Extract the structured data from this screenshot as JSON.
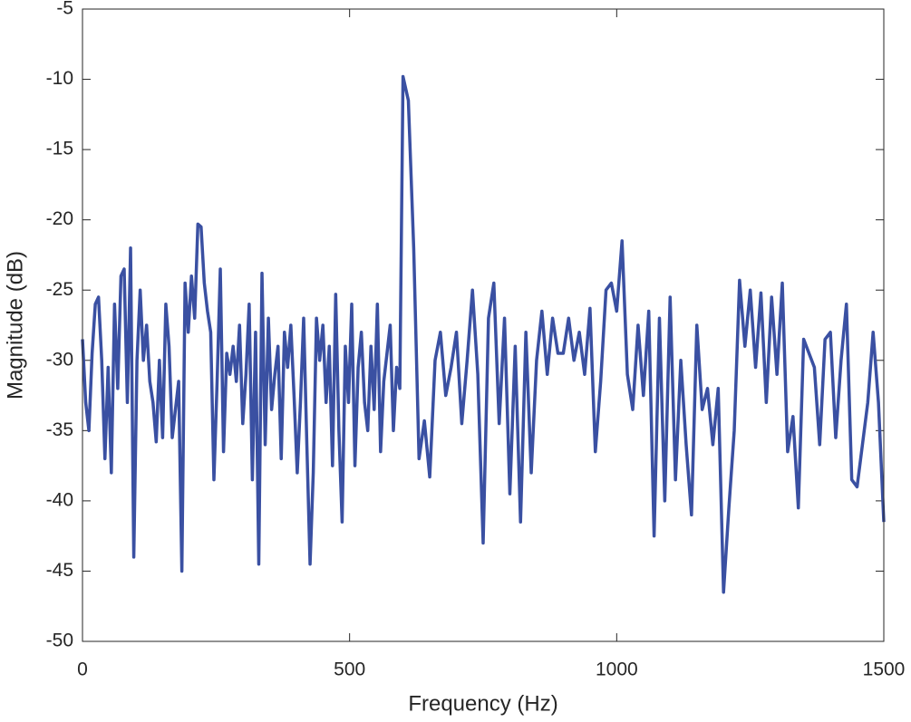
{
  "chart_data": {
    "type": "line",
    "xlabel": "Frequency (Hz)",
    "ylabel": "Magnitude (dB)",
    "xlim": [
      0,
      1500
    ],
    "xticks": [
      0,
      500,
      1000,
      1500
    ],
    "ylim": [
      -50,
      -5
    ],
    "yticks": [
      -50,
      -45,
      -40,
      -35,
      -30,
      -25,
      -20,
      -15,
      -10,
      -5
    ],
    "grid": false,
    "box": true,
    "x": [
      0,
      6,
      12,
      18,
      24,
      30,
      36,
      42,
      48,
      54,
      60,
      66,
      72,
      78,
      84,
      90,
      96,
      102,
      108,
      114,
      120,
      126,
      132,
      138,
      144,
      150,
      156,
      162,
      168,
      174,
      180,
      186,
      192,
      198,
      204,
      210,
      216,
      222,
      228,
      234,
      240,
      246,
      252,
      258,
      264,
      270,
      276,
      282,
      288,
      294,
      300,
      306,
      312,
      318,
      324,
      330,
      336,
      342,
      348,
      354,
      360,
      366,
      372,
      378,
      384,
      390,
      396,
      402,
      408,
      414,
      420,
      426,
      432,
      438,
      444,
      450,
      456,
      462,
      468,
      474,
      480,
      486,
      492,
      498,
      504,
      510,
      516,
      522,
      528,
      534,
      540,
      546,
      552,
      558,
      564,
      570,
      576,
      582,
      588,
      594,
      600,
      610,
      620,
      630,
      640,
      650,
      660,
      670,
      680,
      690,
      700,
      710,
      720,
      730,
      740,
      750,
      760,
      770,
      780,
      790,
      800,
      810,
      820,
      830,
      840,
      850,
      860,
      870,
      880,
      890,
      900,
      910,
      920,
      930,
      940,
      950,
      960,
      970,
      980,
      990,
      1000,
      1010,
      1020,
      1030,
      1040,
      1050,
      1060,
      1070,
      1080,
      1090,
      1100,
      1110,
      1120,
      1130,
      1140,
      1150,
      1160,
      1170,
      1180,
      1190,
      1200,
      1210,
      1220,
      1230,
      1240,
      1250,
      1260,
      1270,
      1280,
      1290,
      1300,
      1310,
      1320,
      1330,
      1340,
      1350,
      1360,
      1370,
      1380,
      1390,
      1400,
      1410,
      1420,
      1430,
      1440,
      1450,
      1460,
      1470,
      1480,
      1490,
      1500
    ],
    "series": [
      {
        "color": "#3a50a2",
        "values": [
          -28.5,
          -33,
          -35,
          -29.5,
          -26,
          -25.5,
          -30,
          -37,
          -30.5,
          -38,
          -26,
          -32,
          -24,
          -23.5,
          -33,
          -22,
          -44,
          -30,
          -25,
          -30,
          -27.5,
          -31.5,
          -33,
          -35.8,
          -30,
          -35.5,
          -26,
          -29,
          -35.5,
          -33.5,
          -31.5,
          -45,
          -24.5,
          -28,
          -24,
          -27,
          -20.3,
          -20.5,
          -24.5,
          -26.5,
          -28,
          -38.5,
          -31.5,
          -23.5,
          -36.5,
          -29.5,
          -31,
          -29,
          -31.5,
          -27.5,
          -34.5,
          -31,
          -26,
          -38.5,
          -28,
          -44.5,
          -23.8,
          -36,
          -27,
          -33.5,
          -31,
          -29,
          -37,
          -28,
          -30.5,
          -27.5,
          -32.5,
          -38,
          -33,
          -27,
          -36,
          -44.5,
          -38,
          -27,
          -30,
          -27.5,
          -33,
          -29,
          -37.5,
          -25.3,
          -35,
          -41.5,
          -29,
          -33,
          -26,
          -37.5,
          -30.5,
          -28,
          -33,
          -35,
          -29,
          -33.5,
          -26,
          -36.5,
          -31.5,
          -29.5,
          -27.5,
          -35,
          -30.5,
          -32,
          -9.8,
          -11.5,
          -22,
          -37,
          -34.3,
          -38.3,
          -30,
          -28,
          -32.5,
          -30.5,
          -28,
          -34.5,
          -30,
          -25,
          -31,
          -43,
          -27,
          -24.5,
          -34.5,
          -27,
          -39.5,
          -29,
          -41.5,
          -28,
          -38,
          -30,
          -26.5,
          -31,
          -27,
          -29.5,
          -29.5,
          -27,
          -30,
          -28,
          -31,
          -26.3,
          -36.5,
          -31.5,
          -25,
          -24.5,
          -26.5,
          -21.5,
          -31,
          -33.5,
          -27.5,
          -32.5,
          -26.5,
          -42.5,
          -27,
          -40,
          -25.5,
          -38.5,
          -30,
          -36,
          -41,
          -27.5,
          -33.5,
          -32,
          -36,
          -32,
          -46.5,
          -40.5,
          -35,
          -24.3,
          -29,
          -25,
          -30.5,
          -25.2,
          -33,
          -25.5,
          -31,
          -24.5,
          -36.5,
          -34,
          -40.5,
          -28.5,
          -29.5,
          -30.5,
          -36,
          -28.5,
          -28,
          -35.5,
          -30,
          -26,
          -38.5,
          -39,
          -36,
          -33,
          -28,
          -33,
          -41.5
        ]
      }
    ]
  }
}
